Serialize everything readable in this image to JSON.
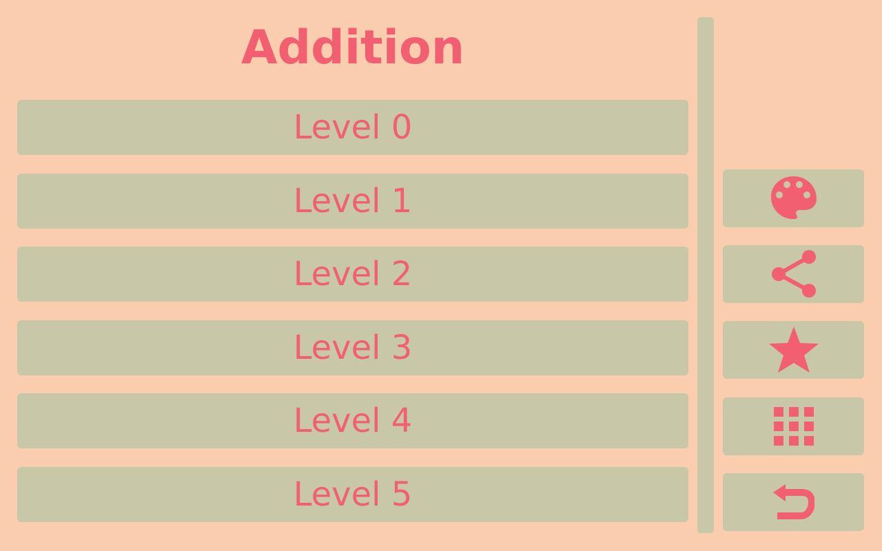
{
  "header": {
    "title": "Addition"
  },
  "levels": [
    {
      "label": "Level 0"
    },
    {
      "label": "Level 1"
    },
    {
      "label": "Level 2"
    },
    {
      "label": "Level 3"
    },
    {
      "label": "Level 4"
    },
    {
      "label": "Level 5"
    }
  ],
  "sidebar": {
    "buttons": [
      {
        "icon": "palette-icon"
      },
      {
        "icon": "share-icon"
      },
      {
        "icon": "star-icon"
      },
      {
        "icon": "grid-icon"
      },
      {
        "icon": "back-icon"
      }
    ]
  },
  "colors": {
    "background": "#f9cdae",
    "button": "#c8c7a8",
    "accent": "#f25f70"
  }
}
